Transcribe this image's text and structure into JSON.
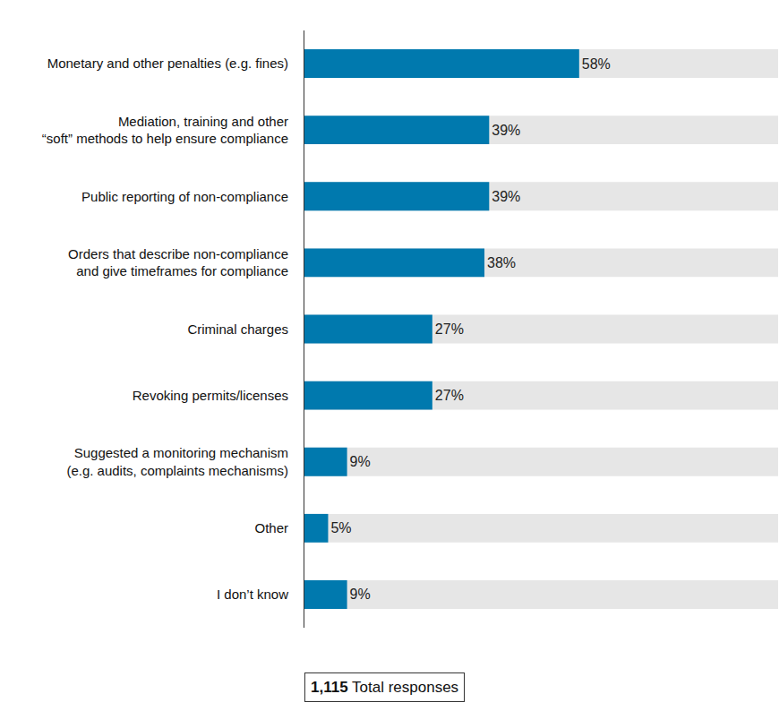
{
  "chart_data": {
    "type": "bar",
    "orientation": "horizontal",
    "categories": [
      "Monetary and other penalties (e.g. fines)",
      "Mediation, training and other\n“soft” methods to help ensure compliance",
      "Public reporting of non-compliance",
      "Orders that describe non-compliance\nand give timeframes for compliance",
      "Criminal charges",
      "Revoking permits/licenses",
      "Suggested a monitoring mechanism\n(e.g. audits, complaints mechanisms)",
      "Other",
      "I don’t know"
    ],
    "values": [
      58,
      39,
      39,
      38,
      27,
      27,
      9,
      5,
      9
    ],
    "value_labels": [
      "58%",
      "39%",
      "39%",
      "38%",
      "27%",
      "27%",
      "9%",
      "5%",
      "9%"
    ],
    "data_labels": true,
    "color": "#0079ae",
    "xlim": [
      0,
      100
    ],
    "tick_labels": "y",
    "grid": false,
    "total": {
      "value": 1115,
      "value_label": "1,115",
      "text": "Total responses"
    }
  }
}
